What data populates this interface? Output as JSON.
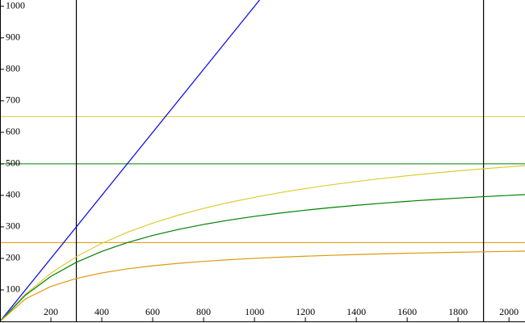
{
  "chart_data": {
    "type": "line",
    "xlim": [
      0,
      2063
    ],
    "ylim": [
      0,
      1020
    ],
    "xticks": [
      200,
      400,
      600,
      800,
      1000,
      1200,
      1400,
      1600,
      1800,
      2000
    ],
    "yticks": [
      100,
      200,
      300,
      400,
      500,
      600,
      700,
      800,
      900,
      1000
    ],
    "hlines": [
      {
        "value": 650,
        "color": "#ddcc33"
      },
      {
        "value": 500,
        "color": "#008000"
      },
      {
        "value": 250,
        "color": "#dd9911"
      }
    ],
    "vlines": [
      {
        "value": 300,
        "color": "#000000"
      },
      {
        "value": 1900,
        "color": "#000000"
      }
    ],
    "series": [
      {
        "color": "#0000ee",
        "x": [
          0,
          1020
        ],
        "values": [
          0,
          1020
        ]
      },
      {
        "color": "#ddcc33",
        "x": [
          0,
          100,
          200,
          300,
          400,
          500,
          600,
          700,
          800,
          900,
          1000,
          1100,
          1200,
          1300,
          1400,
          1500,
          1600,
          1700,
          1800,
          1900,
          2000,
          2063
        ],
        "values": [
          0,
          86.7,
          152.9,
          205.3,
          247.6,
          282.6,
          312,
          337,
          358.6,
          377.4,
          393.9,
          408.6,
          421.6,
          433.3,
          443.9,
          453.5,
          462.2,
          470.2,
          477.6,
          484.3,
          490.6,
          494.3
        ]
      },
      {
        "color": "#008000",
        "x": [
          0,
          100,
          200,
          300,
          400,
          500,
          600,
          700,
          800,
          900,
          1000,
          1100,
          1200,
          1300,
          1400,
          1500,
          1600,
          1700,
          1800,
          1900,
          2000,
          2063
        ],
        "values": [
          0,
          83.3,
          142.9,
          187.5,
          222.2,
          250,
          272.7,
          291.7,
          307.7,
          321.4,
          333.3,
          343.8,
          352.9,
          361.1,
          368.4,
          375,
          381,
          386.4,
          391.3,
          395.8,
          400,
          402.4
        ]
      },
      {
        "color": "#dd9911",
        "x": [
          0,
          100,
          200,
          300,
          400,
          500,
          600,
          700,
          800,
          900,
          1000,
          1100,
          1200,
          1300,
          1400,
          1500,
          1600,
          1700,
          1800,
          1900,
          2000,
          2063
        ],
        "values": [
          0,
          71.4,
          111.1,
          136.4,
          153.8,
          166.7,
          176.5,
          184.2,
          190.5,
          195.7,
          200,
          203.7,
          206.9,
          209.7,
          212.1,
          214.3,
          216.2,
          217.9,
          219.5,
          220.9,
          222.2,
          223
        ]
      }
    ]
  }
}
